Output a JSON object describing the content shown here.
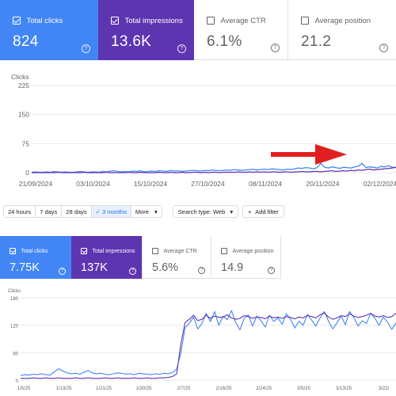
{
  "colors": {
    "clicks": "#4285f4",
    "impressions": "#5e35b1",
    "arrow": "#e02020",
    "grid": "#e8eaed"
  },
  "top": {
    "metrics": {
      "clicks": {
        "label": "Total clicks",
        "value": "824",
        "checked": true
      },
      "impressions": {
        "label": "Total impressions",
        "value": "13.6K",
        "checked": true
      },
      "ctr": {
        "label": "Average CTR",
        "value": "6.1%",
        "checked": false
      },
      "position": {
        "label": "Average position",
        "value": "21.2",
        "checked": false
      }
    },
    "help_icon": "?",
    "filter_bar": {
      "ranges": [
        "24 hours",
        "7 days",
        "28 days",
        "3 months"
      ],
      "selected_range": "3 months",
      "selected_check": "✓",
      "more_label": "More",
      "search_type_label": "Search type: Web",
      "add_filter_label": "Add filter",
      "add_filter_icon": "+",
      "dropdown_icon": "▾"
    }
  },
  "bottom": {
    "metrics": {
      "clicks": {
        "label": "Total clicks",
        "value": "7.75K",
        "checked": true
      },
      "impressions": {
        "label": "Total impressions",
        "value": "137K",
        "checked": true
      },
      "ctr": {
        "label": "Average CTR",
        "value": "5.6%",
        "checked": false
      },
      "position": {
        "label": "Average position",
        "value": "14.9",
        "checked": false
      }
    },
    "help_icon": "?"
  },
  "chart_data": [
    {
      "type": "line",
      "ylabel": "Clicks",
      "ylim": [
        0,
        225
      ],
      "yticks": [
        0,
        75,
        150,
        225
      ],
      "xticks": [
        "21/09/2024",
        "03/10/2024",
        "15/10/2024",
        "27/10/2024",
        "08/11/2024",
        "20/11/2024",
        "02/12/2024"
      ],
      "grid": true,
      "annotation": "red arrow pointing right toward recent uptick",
      "series": [
        {
          "values": [
            1,
            2,
            1,
            1,
            2,
            1,
            3,
            2,
            1,
            2,
            1,
            1,
            2,
            3,
            2,
            1,
            2,
            2,
            1,
            3,
            2,
            4,
            5,
            3,
            2,
            3,
            2,
            4,
            3,
            5,
            2,
            3,
            4,
            3,
            5,
            4,
            3,
            6,
            4,
            5,
            3,
            4,
            5,
            6,
            5,
            4,
            6,
            5,
            7,
            6,
            5,
            6,
            7,
            6,
            8,
            7,
            6,
            7,
            8,
            9,
            7,
            8,
            9,
            8,
            10,
            9,
            8,
            7,
            9,
            8,
            10,
            12,
            11,
            13,
            12,
            10,
            13,
            24,
            14,
            12,
            15,
            13,
            11,
            14,
            13,
            12,
            15,
            17,
            24,
            13,
            15,
            14,
            12,
            16,
            15,
            18,
            14,
            13
          ]
        },
        {
          "values": [
            0,
            0,
            0,
            0,
            0,
            0,
            0,
            1,
            0,
            0,
            0,
            0,
            0,
            0,
            1,
            0,
            0,
            0,
            0,
            0,
            1,
            0,
            0,
            0,
            0,
            0,
            1,
            0,
            0,
            1,
            0,
            0,
            0,
            0,
            1,
            0,
            0,
            1,
            0,
            0,
            1,
            0,
            0,
            1,
            1,
            0,
            1,
            0,
            1,
            1,
            0,
            1,
            1,
            1,
            1,
            2,
            1,
            1,
            2,
            1,
            2,
            1,
            2,
            1,
            2,
            2,
            1,
            2,
            2,
            1,
            2,
            2,
            3,
            2,
            2,
            3,
            3,
            2,
            3,
            4,
            5,
            3,
            4,
            5,
            4,
            6,
            5,
            7,
            6,
            8,
            9,
            7,
            8,
            9,
            10,
            11,
            12,
            14
          ]
        }
      ]
    },
    {
      "type": "line",
      "ylabel": "Clicks",
      "ylim": [
        0,
        180
      ],
      "yticks": [
        0,
        60,
        120,
        180
      ],
      "xticks": [
        "1/5/25",
        "1/13/25",
        "1/21/25",
        "1/30/25",
        "2/7/25",
        "2/16/25",
        "2/24/25",
        "3/5/25",
        "3/13/25",
        "3/22/"
      ],
      "grid": true,
      "series": [
        {
          "values": [
            10,
            12,
            11,
            13,
            12,
            14,
            12,
            11,
            18,
            25,
            20,
            16,
            14,
            15,
            13,
            17,
            21,
            16,
            14,
            15,
            13,
            12,
            14,
            16,
            15,
            13,
            14,
            12,
            15,
            14,
            13,
            12,
            14,
            13,
            15,
            14,
            17,
            24,
            60,
            115,
            124,
            138,
            112,
            124,
            146,
            128,
            150,
            120,
            140,
            132,
            152,
            126,
            110,
            135,
            143,
            118,
            140,
            130,
            116,
            142,
            128,
            136,
            122,
            145,
            133,
            114,
            129,
            120,
            144,
            131,
            118,
            136,
            150,
            129,
            112,
            125,
            140,
            121,
            150,
            137,
            118,
            130,
            124,
            146,
            135,
            120,
            138,
            127,
            111,
            125
          ]
        },
        {
          "values": [
            4,
            4,
            4,
            5,
            4,
            4,
            5,
            4,
            4,
            5,
            4,
            4,
            4,
            5,
            4,
            4,
            5,
            4,
            4,
            4,
            5,
            4,
            4,
            5,
            4,
            4,
            4,
            5,
            4,
            4,
            5,
            4,
            4,
            5,
            5,
            6,
            8,
            14,
            80,
            126,
            133,
            142,
            130,
            133,
            142,
            135,
            140,
            138,
            137,
            143,
            136,
            133,
            135,
            141,
            139,
            135,
            138,
            137,
            134,
            140,
            136,
            138,
            135,
            139,
            137,
            134,
            138,
            136,
            141,
            139,
            136,
            143,
            147,
            138,
            133,
            136,
            141,
            139,
            145,
            140,
            137,
            139,
            142,
            146,
            140,
            138,
            141,
            137,
            139,
            146
          ]
        }
      ]
    }
  ]
}
